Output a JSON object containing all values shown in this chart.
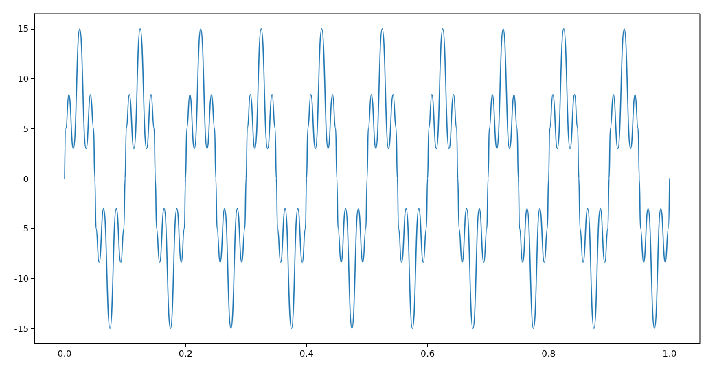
{
  "chart_data": {
    "type": "line",
    "xlim": [
      -0.05,
      1.05
    ],
    "ylim": [
      -16.5,
      16.5
    ],
    "xticks": [
      {
        "value": 0,
        "label": "0.0"
      },
      0.2,
      0.4,
      0.6,
      0.8,
      {
        "value": 1,
        "label": "1.0"
      }
    ],
    "yticks": [
      -15,
      -10,
      -5,
      0,
      5,
      10,
      15
    ],
    "grid": false,
    "marker": "none",
    "line_style": "solid",
    "series": [
      {
        "color": "#1f77b4",
        "x": [
          0,
          0.002,
          0.007,
          0.0145,
          0.025,
          0.0355,
          0.043,
          0.048,
          0.05,
          0.052,
          0.057,
          0.0645,
          0.075,
          0.0855,
          0.093,
          0.098,
          0.1,
          0.102,
          0.107,
          0.1145,
          0.125,
          0.1355,
          0.143,
          0.148,
          0.15,
          0.152,
          0.157,
          0.1645,
          0.175,
          0.1855,
          0.193,
          0.198,
          0.2,
          0.202,
          0.207,
          0.2145,
          0.225,
          0.2355,
          0.243,
          0.248,
          0.25,
          0.252,
          0.257,
          0.2645,
          0.275,
          0.2855,
          0.293,
          0.298,
          0.3,
          0.302,
          0.307,
          0.3145,
          0.325,
          0.3355,
          0.343,
          0.348,
          0.35,
          0.352,
          0.357,
          0.3645,
          0.375,
          0.3855,
          0.393,
          0.398,
          0.4,
          0.402,
          0.407,
          0.4145,
          0.425,
          0.4355,
          0.443,
          0.448,
          0.45,
          0.452,
          0.457,
          0.4645,
          0.475,
          0.4855,
          0.493,
          0.498,
          0.5,
          0.502,
          0.507,
          0.5145,
          0.525,
          0.5355,
          0.543,
          0.548,
          0.55,
          0.552,
          0.557,
          0.5645,
          0.575,
          0.5855,
          0.593,
          0.598,
          0.6,
          0.602,
          0.607,
          0.6145,
          0.625,
          0.6355,
          0.643,
          0.648,
          0.65,
          0.652,
          0.657,
          0.6645,
          0.675,
          0.6855,
          0.693,
          0.698,
          0.7,
          0.702,
          0.707,
          0.7145,
          0.725,
          0.7355,
          0.743,
          0.748,
          0.75,
          0.752,
          0.757,
          0.7645,
          0.775,
          0.7855,
          0.793,
          0.798,
          0.8,
          0.802,
          0.807,
          0.8145,
          0.825,
          0.8355,
          0.843,
          0.848,
          0.85,
          0.852,
          0.857,
          0.8645,
          0.875,
          0.8855,
          0.893,
          0.898,
          0.9,
          0.902,
          0.907,
          0.9145,
          0.925,
          0.9355,
          0.943,
          0.948,
          0.95,
          0.952,
          0.957,
          0.9645,
          0.975,
          0.9855,
          0.993,
          0.998,
          1.0
        ],
        "values": [
          0,
          5,
          8.4,
          3,
          15,
          3,
          8.4,
          5,
          0,
          -5,
          -8.4,
          -3,
          -15,
          -3,
          -8.4,
          -5,
          0,
          5,
          8.4,
          3,
          15,
          3,
          8.4,
          5,
          0,
          -5,
          -8.4,
          -3,
          -15,
          -3,
          -8.4,
          -5,
          0,
          5,
          8.4,
          3,
          15,
          3,
          8.4,
          5,
          0,
          -5,
          -8.4,
          -3,
          -15,
          -3,
          -8.4,
          -5,
          0,
          5,
          8.4,
          3,
          15,
          3,
          8.4,
          5,
          0,
          -5,
          -8.4,
          -3,
          -15,
          -3,
          -8.4,
          -5,
          0,
          5,
          8.4,
          3,
          15,
          3,
          8.4,
          5,
          0,
          -5,
          -8.4,
          -3,
          -15,
          -3,
          -8.4,
          -5,
          0,
          5,
          8.4,
          3,
          15,
          3,
          8.4,
          5,
          0,
          -5,
          -8.4,
          -3,
          -15,
          -3,
          -8.4,
          -5,
          0,
          5,
          8.4,
          3,
          15,
          3,
          8.4,
          5,
          0,
          -5,
          -8.4,
          -3,
          -15,
          -3,
          -8.4,
          -5,
          0,
          5,
          8.4,
          3,
          15,
          3,
          8.4,
          5,
          0,
          -5,
          -8.4,
          -3,
          -15,
          -3,
          -8.4,
          -5,
          0,
          5,
          8.4,
          3,
          15,
          3,
          8.4,
          5,
          0,
          -5,
          -8.4,
          -3,
          -15,
          -3,
          -8.4,
          -5,
          0,
          5,
          8.4,
          3,
          15,
          3,
          8.4,
          5,
          0,
          -5,
          -8.4,
          -3,
          -15,
          -3,
          -8.4,
          -5,
          0
        ]
      }
    ]
  }
}
